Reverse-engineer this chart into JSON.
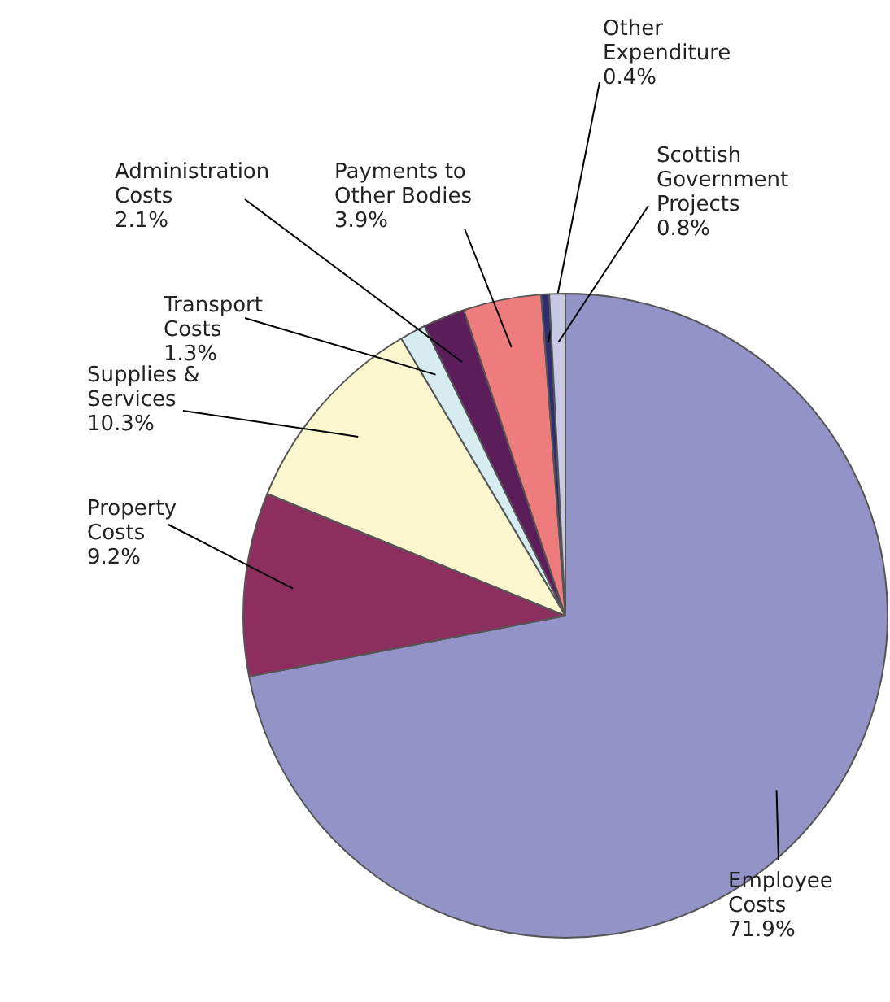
{
  "chart_data": {
    "type": "pie",
    "categories": [
      "Employee\nCosts",
      "Property\nCosts",
      "Supplies &\nServices",
      "Transport\nCosts",
      "Administration\nCosts",
      "Payments to\nOther Bodies",
      "Other\nExpenditure",
      "Scottish\nGovernment\nProjects"
    ],
    "values": [
      71.9,
      9.2,
      10.3,
      1.3,
      2.1,
      3.9,
      0.4,
      0.8
    ],
    "value_labels": [
      "71.9%",
      "9.2%",
      "10.3%",
      "1.3%",
      "2.1%",
      "3.9%",
      "0.4%",
      "0.8%"
    ],
    "colors": [
      "#9393c8",
      "#8c2f5f",
      "#fbf6cd",
      "#d6ecf1",
      "#5b1e5b",
      "#ee7c7c",
      "#2e2e6e",
      "#c9c9e5"
    ]
  }
}
